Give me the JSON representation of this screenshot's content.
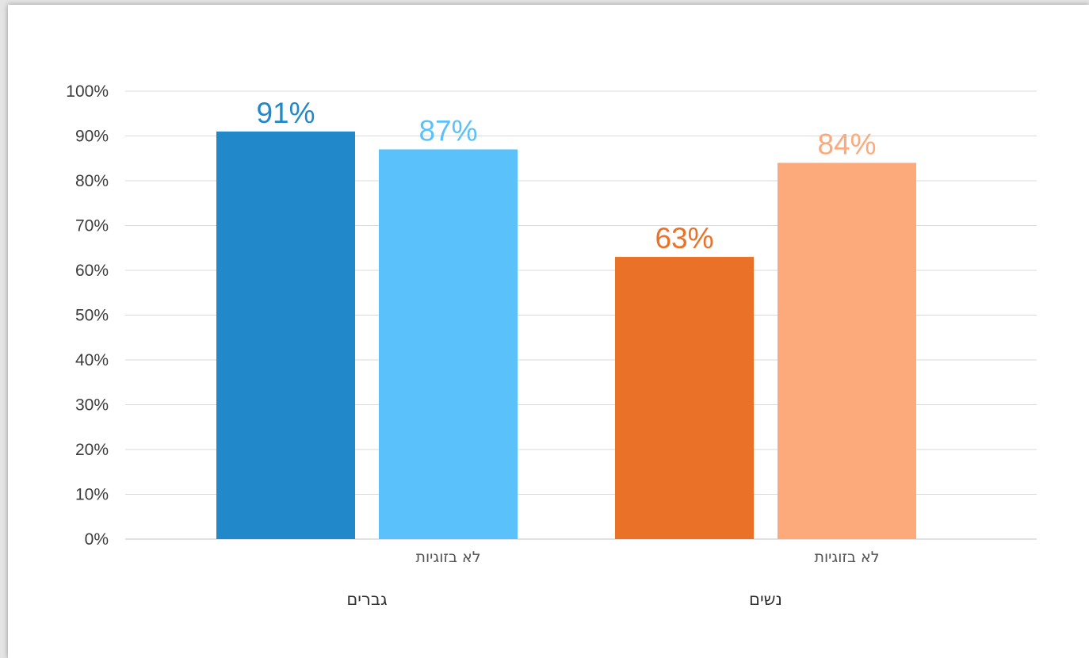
{
  "chart_data": {
    "type": "bar",
    "title": "",
    "xlabel": "",
    "ylabel": "",
    "ylim": [
      0,
      100
    ],
    "yticks": [
      "0%",
      "10%",
      "20%",
      "30%",
      "40%",
      "50%",
      "60%",
      "70%",
      "80%",
      "90%",
      "100%"
    ],
    "grid": true,
    "groups": [
      {
        "label": "גברים",
        "bars": [
          {
            "value": 91,
            "label": "91%",
            "sublabel": "",
            "color": "#2188c9"
          },
          {
            "value": 87,
            "label": "87%",
            "sublabel": "לא בזוגיות",
            "color": "#5ac1fb"
          }
        ]
      },
      {
        "label": "נשים",
        "bars": [
          {
            "value": 63,
            "label": "63%",
            "sublabel": "",
            "color": "#ea7228"
          },
          {
            "value": 84,
            "label": "84%",
            "sublabel": "לא בזוגיות",
            "color": "#fcaa7c"
          }
        ]
      }
    ]
  }
}
